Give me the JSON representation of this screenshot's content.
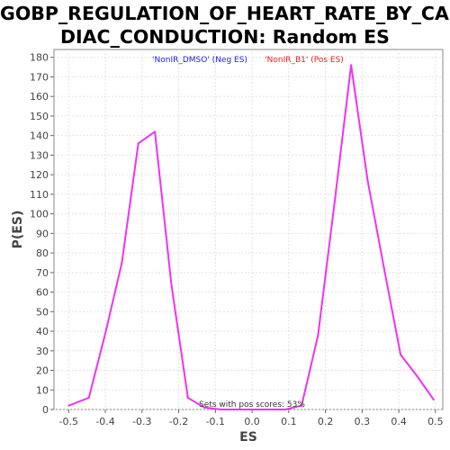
{
  "chart_data": {
    "type": "line",
    "title": "GOBP_REGULATION_OF_HEART_RATE_BY_CARDIAC_CONDUCTION: Random ES distribution",
    "title_lines": [
      "GOBP_REGULATION_OF_HEART_RATE_BY_CAR",
      "DIAC_CONDUCTION: Random ES distribution"
    ],
    "xlabel": "ES",
    "ylabel": "P(ES)",
    "xlim": [
      -0.54,
      0.52
    ],
    "ylim": [
      0,
      184
    ],
    "xticks": [
      -0.5,
      -0.4,
      -0.3,
      -0.2,
      -0.1,
      0.0,
      0.1,
      0.2,
      0.3,
      0.4,
      0.5
    ],
    "xtick_labels": [
      "-0.5",
      "-0.4",
      "-0.3",
      "-0.2",
      "-0.1",
      "0.0",
      "0.1",
      "0.2",
      "0.3",
      "0.4",
      "0.5"
    ],
    "yticks": [
      0,
      10,
      20,
      30,
      40,
      50,
      60,
      70,
      80,
      90,
      100,
      110,
      120,
      130,
      140,
      150,
      160,
      170,
      180
    ],
    "grid": true,
    "legend": [
      {
        "label": "'NonIR_DMSO' (Neg ES)",
        "color": "#2222dd"
      },
      {
        "label": "'NonIR_B1' (Pos ES)",
        "color": "#dd2222"
      }
    ],
    "legend_position": "top",
    "annotation": "Sets with pos scores: 53%",
    "series": [
      {
        "color": "#ee33ee",
        "x": [
          -0.5,
          -0.445,
          -0.4,
          -0.355,
          -0.31,
          -0.265,
          -0.22,
          -0.175,
          -0.13,
          -0.085,
          0.09,
          0.135,
          0.18,
          0.225,
          0.27,
          0.315,
          0.36,
          0.405,
          0.45,
          0.495
        ],
        "y": [
          2,
          6,
          39,
          75,
          136,
          142,
          64,
          6,
          1,
          0,
          0,
          2,
          38,
          106,
          176,
          117,
          72,
          28,
          17,
          5
        ]
      }
    ]
  }
}
